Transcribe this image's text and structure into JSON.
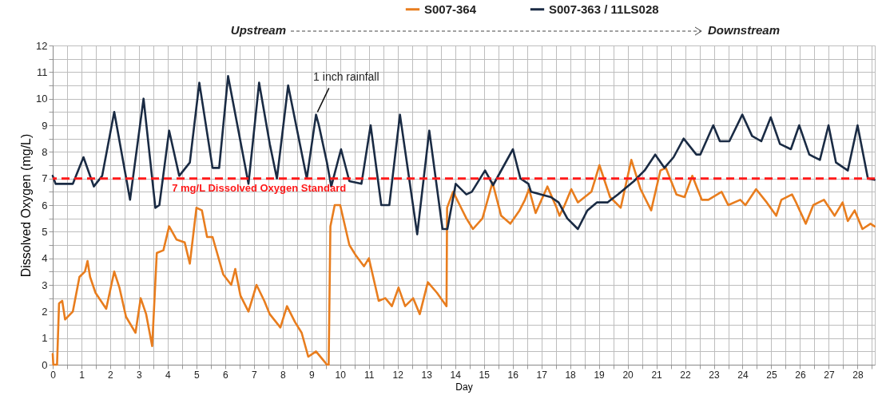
{
  "chart_data": {
    "type": "line",
    "xlabel": "Day",
    "ylabel": "Dissolved Oxygen (mg/L)",
    "xlim": [
      0,
      28.6
    ],
    "ylim": [
      0,
      12
    ],
    "xticks": [
      0,
      1,
      2,
      3,
      4,
      5,
      6,
      7,
      8,
      9,
      10,
      11,
      12,
      13,
      14,
      15,
      16,
      17,
      18,
      19,
      20,
      21,
      22,
      23,
      24,
      25,
      26,
      27,
      28,
      {
        "value": 0.5,
        "label": null
      },
      {
        "value": 1.5,
        "label": null
      },
      {
        "value": 2.5,
        "label": null
      },
      {
        "value": 3.5,
        "label": null
      },
      {
        "value": 4.5,
        "label": null
      },
      {
        "value": 5.5,
        "label": null
      },
      {
        "value": 6.5,
        "label": null
      },
      {
        "value": 7.5,
        "label": null
      },
      {
        "value": 8.5,
        "label": null
      },
      {
        "value": 9.5,
        "label": null
      },
      {
        "value": 10.5,
        "label": null
      },
      {
        "value": 11.5,
        "label": null
      },
      {
        "value": 12.5,
        "label": null
      },
      {
        "value": 13.5,
        "label": null
      },
      {
        "value": 14.5,
        "label": null
      },
      {
        "value": 15.5,
        "label": null
      },
      {
        "value": 16.5,
        "label": null
      },
      {
        "value": 17.5,
        "label": null
      },
      {
        "value": 18.5,
        "label": null
      },
      {
        "value": 19.5,
        "label": null
      },
      {
        "value": 20.5,
        "label": null
      },
      {
        "value": 21.5,
        "label": null
      },
      {
        "value": 22.5,
        "label": null
      },
      {
        "value": 23.5,
        "label": null
      },
      {
        "value": 24.5,
        "label": null
      },
      {
        "value": 25.5,
        "label": null
      },
      {
        "value": 26.5,
        "label": null
      },
      {
        "value": 27.5,
        "label": null
      },
      {
        "value": 28.5,
        "label": null
      }
    ],
    "yticks": [
      0,
      1,
      2,
      3,
      4,
      5,
      6,
      7,
      8,
      9,
      10,
      11,
      12,
      {
        "value": 0.5,
        "label": null
      },
      {
        "value": 1.5,
        "label": null
      },
      {
        "value": 2.5,
        "label": null
      },
      {
        "value": 3.5,
        "label": null
      },
      {
        "value": 4.5,
        "label": null
      },
      {
        "value": 5.5,
        "label": null
      },
      {
        "value": 6.5,
        "label": null
      },
      {
        "value": 7.5,
        "label": null
      },
      {
        "value": 8.5,
        "label": null
      },
      {
        "value": 9.5,
        "label": null
      },
      {
        "value": 10.5,
        "label": null
      },
      {
        "value": 11.5,
        "label": null
      }
    ],
    "grid": true,
    "legend": "top",
    "line_style": "solid",
    "marker": "none",
    "series": [
      {
        "name": "S007-364",
        "color": "#e87d1e",
        "x": [
          0,
          0.02,
          0.15,
          0.22,
          0.33,
          0.43,
          0.7,
          0.93,
          1.12,
          1.21,
          1.3,
          1.49,
          1.86,
          2.14,
          2.32,
          2.55,
          2.88,
          3.06,
          3.25,
          3.46,
          3.62,
          3.85,
          4.05,
          4.31,
          4.59,
          4.77,
          5.0,
          5.19,
          5.37,
          5.56,
          5.93,
          6.21,
          6.35,
          6.53,
          6.81,
          7.09,
          7.36,
          7.55,
          7.92,
          8.15,
          8.43,
          8.66,
          8.89,
          9.16,
          9.39,
          9.54,
          9.6,
          9.66,
          9.81,
          10.0,
          10.32,
          10.55,
          10.83,
          11.0,
          11.34,
          11.57,
          11.8,
          12.03,
          12.26,
          12.54,
          12.77,
          13.05,
          13.37,
          13.7,
          13.72,
          13.93,
          14.16,
          14.39,
          14.62,
          14.95,
          15.3,
          15.6,
          15.92,
          16.24,
          16.43,
          16.57,
          16.8,
          17.21,
          17.53,
          17.63,
          17.81,
          18.04,
          18.27,
          18.74,
          19.02,
          19.39,
          19.76,
          20.13,
          20.45,
          20.82,
          21.14,
          21.33,
          21.7,
          21.98,
          22.25,
          22.58,
          22.81,
          23.27,
          23.5,
          23.92,
          24.1,
          24.47,
          24.84,
          25.17,
          25.35,
          25.72,
          25.86,
          26.2,
          26.46,
          26.83,
          27.2,
          27.48,
          27.66,
          27.9,
          28.17,
          28.45,
          28.59
        ],
        "values": [
          0.4,
          0,
          0,
          2.3,
          2.4,
          1.7,
          2.0,
          3.3,
          3.5,
          3.9,
          3.3,
          2.7,
          2.1,
          3.5,
          2.9,
          1.8,
          1.2,
          2.5,
          1.9,
          0.7,
          4.2,
          4.3,
          5.2,
          4.7,
          4.6,
          3.8,
          5.9,
          5.8,
          4.8,
          4.8,
          3.4,
          3.0,
          3.6,
          2.6,
          2.0,
          3.0,
          2.4,
          1.9,
          1.4,
          2.2,
          1.6,
          1.2,
          0.3,
          0.5,
          0.2,
          0,
          0,
          5.2,
          6.0,
          6.0,
          4.5,
          4.1,
          3.7,
          4.0,
          2.4,
          2.5,
          2.2,
          2.9,
          2.2,
          2.5,
          1.9,
          3.1,
          2.7,
          2.2,
          5.9,
          6.5,
          6.0,
          5.5,
          5.1,
          5.5,
          6.85,
          5.6,
          5.3,
          5.8,
          6.2,
          6.6,
          5.7,
          6.7,
          5.9,
          5.6,
          6.0,
          6.6,
          6.1,
          6.5,
          7.5,
          6.3,
          5.9,
          7.7,
          6.6,
          5.8,
          7.3,
          7.4,
          6.4,
          6.3,
          7.1,
          6.2,
          6.2,
          6.5,
          6.0,
          6.2,
          6.0,
          6.6,
          6.1,
          5.6,
          6.2,
          6.4,
          6.1,
          5.3,
          6.0,
          6.2,
          5.6,
          6.1,
          5.4,
          5.8,
          5.1,
          5.3,
          5.2
        ]
      },
      {
        "name": "S007-363 / 11LS028",
        "color": "#1a2b44",
        "x": [
          0,
          0.1,
          0.7,
          1.07,
          1.43,
          1.72,
          2.14,
          2.69,
          3.16,
          3.57,
          3.71,
          4.05,
          4.4,
          4.77,
          5.1,
          5.56,
          5.79,
          6.1,
          6.81,
          7.18,
          7.55,
          7.8,
          8.19,
          8.84,
          9.16,
          9.26,
          9.54,
          9.69,
          10.03,
          10.32,
          10.74,
          11.06,
          11.43,
          11.71,
          12.08,
          12.68,
          13.1,
          13.56,
          13.73,
          14.02,
          14.39,
          14.58,
          15.04,
          15.32,
          16.01,
          16.27,
          16.55,
          16.64,
          16.99,
          17.33,
          17.6,
          17.9,
          18.27,
          18.6,
          18.93,
          19.3,
          19.66,
          20.22,
          20.59,
          20.96,
          21.28,
          21.6,
          21.95,
          22.39,
          22.53,
          22.98,
          23.21,
          23.54,
          23.99,
          24.33,
          24.65,
          24.98,
          25.3,
          25.68,
          25.97,
          26.32,
          26.69,
          26.99,
          27.25,
          27.66,
          28.0,
          28.36,
          28.59
        ],
        "values": [
          7.1,
          6.8,
          6.8,
          7.8,
          6.7,
          7.1,
          9.5,
          6.2,
          10.0,
          5.9,
          6.0,
          8.8,
          7.1,
          7.6,
          10.6,
          7.4,
          7.4,
          10.85,
          6.8,
          10.6,
          8.3,
          7.0,
          10.5,
          7.0,
          9.4,
          9.0,
          7.6,
          6.7,
          8.1,
          6.9,
          6.8,
          9.0,
          6.0,
          6.0,
          9.4,
          4.9,
          8.8,
          5.1,
          5.1,
          6.8,
          6.4,
          6.5,
          7.3,
          6.75,
          8.1,
          7.0,
          6.8,
          6.5,
          6.4,
          6.3,
          6.1,
          5.5,
          5.1,
          5.8,
          6.1,
          6.1,
          6.4,
          6.9,
          7.3,
          7.9,
          7.4,
          7.8,
          8.5,
          7.9,
          7.9,
          9.0,
          8.4,
          8.4,
          9.4,
          8.6,
          8.4,
          9.3,
          8.3,
          8.1,
          9.0,
          7.9,
          7.7,
          9.0,
          7.6,
          7.3,
          9.0,
          7.0,
          6.95
        ]
      }
    ],
    "ref_lines": [
      {
        "axis": "y",
        "value": 7,
        "label": "7 mg/L Dissolved Oxygen Standard",
        "color": "#ff1a1a",
        "line_style": "dashed"
      }
    ],
    "annotations": [
      "Upstream",
      "Downstream",
      {
        "text": "1 inch rainfall",
        "x": 9.16,
        "y": 9.4
      }
    ]
  }
}
